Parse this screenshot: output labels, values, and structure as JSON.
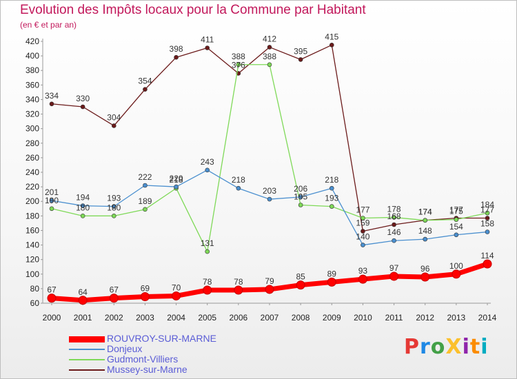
{
  "title": "Evolution des Impôts locaux pour la Commune par Habitant",
  "subtitle": "(en € et par an)",
  "logo": {
    "text": "ProXiti",
    "colors": [
      "#e53935",
      "#1e88e5",
      "#43a047",
      "#fbc02d",
      "#8e24aa",
      "#fb8c00",
      "#00acc1"
    ]
  },
  "chart_data": {
    "type": "line",
    "title": "Evolution des Impôts locaux pour la Commune par Habitant",
    "subtitle": "(en € et par an)",
    "x": [
      "2000",
      "2001",
      "2002",
      "2003",
      "2004",
      "2005",
      "2006",
      "2007",
      "2008",
      "2009",
      "2010",
      "2011",
      "2012",
      "2013",
      "2014"
    ],
    "ylim": [
      60,
      420
    ],
    "yticks": [
      60,
      80,
      100,
      120,
      140,
      160,
      180,
      200,
      220,
      240,
      260,
      280,
      300,
      320,
      340,
      360,
      380,
      400,
      420
    ],
    "grid": false,
    "legend_position": "bottom-left",
    "series": [
      {
        "name": "ROUVROY-SUR-MARNE",
        "color": "#ff0000",
        "values": [
          67,
          64,
          67,
          69,
          70,
          78,
          78,
          79,
          85,
          89,
          93,
          97,
          96,
          100,
          114
        ]
      },
      {
        "name": "Donjeux",
        "color": "#4a8fcf",
        "values": [
          201,
          194,
          193,
          222,
          220,
          243,
          218,
          203,
          206,
          218,
          140,
          146,
          148,
          154,
          158
        ]
      },
      {
        "name": "Gudmont-Villiers",
        "color": "#7ed957",
        "values": [
          190,
          180,
          180,
          189,
          218,
          131,
          388,
          388,
          195,
          193,
          177,
          178,
          174,
          175,
          184
        ]
      },
      {
        "name": "Mussey-sur-Marne",
        "color": "#6b1a1a",
        "values": [
          334,
          330,
          304,
          354,
          398,
          411,
          376,
          412,
          395,
          415,
          159,
          168,
          174,
          177,
          177
        ]
      }
    ],
    "data_labels": [
      [
        67,
        64,
        67,
        69,
        70,
        78,
        78,
        79,
        85,
        89,
        93,
        97,
        96,
        100,
        114
      ],
      [
        201,
        194,
        193,
        222,
        220,
        243,
        218,
        203,
        206,
        218,
        140,
        146,
        148,
        154,
        158
      ],
      [
        190,
        180,
        180,
        189,
        218,
        131,
        388,
        388,
        195,
        193,
        177,
        178,
        174,
        175,
        184
      ],
      [
        334,
        330,
        304,
        354,
        398,
        411,
        376,
        412,
        395,
        415,
        159,
        168,
        174,
        177,
        177
      ]
    ]
  }
}
